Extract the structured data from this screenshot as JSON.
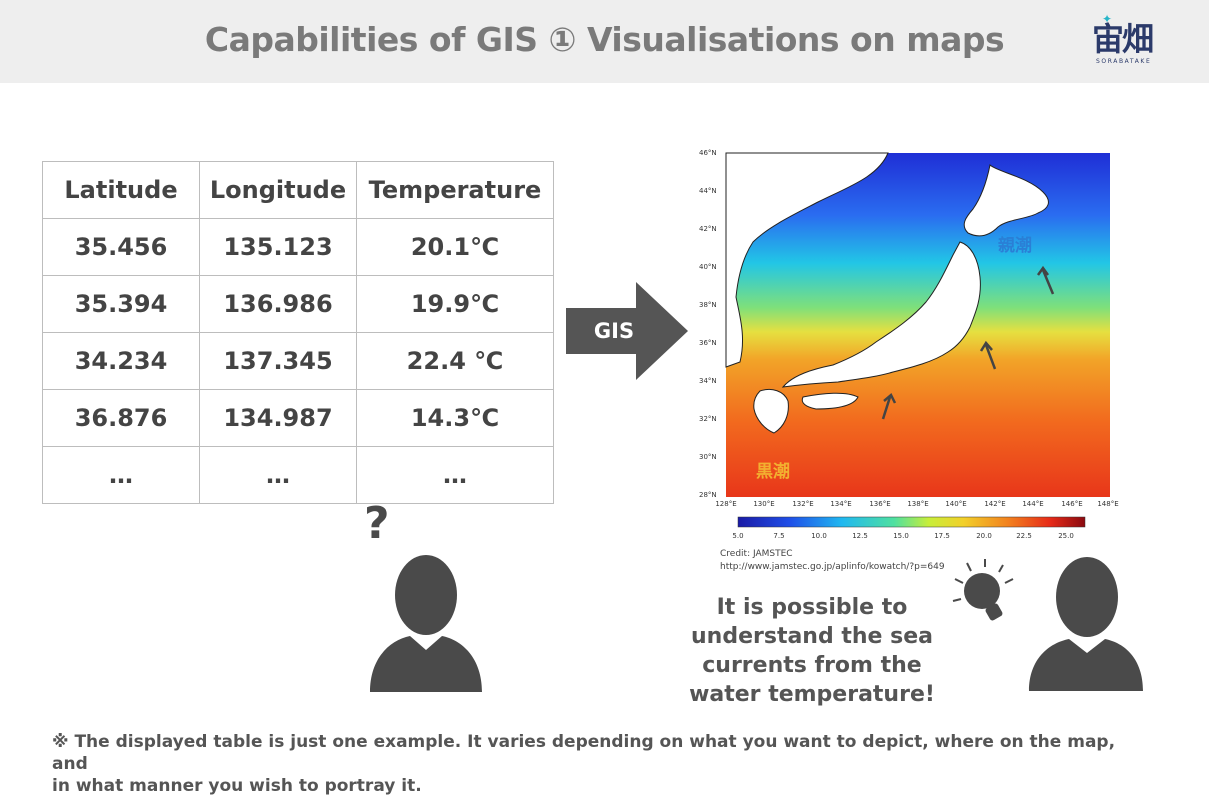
{
  "header": {
    "title": "Capabilities of GIS ① Visualisations on maps"
  },
  "logo": {
    "name": "宙畑",
    "subtitle": "SORABATAKE",
    "color": "#2b3a6a"
  },
  "table": {
    "headers": [
      "Latitude",
      "Longitude",
      "Temperature"
    ],
    "rows": [
      [
        "35.456",
        "135.123",
        "20.1℃"
      ],
      [
        "35.394",
        "136.986",
        "19.9℃"
      ],
      [
        "34.234",
        "137.345",
        "22.4 ℃"
      ],
      [
        "36.876",
        "134.987",
        "14.3℃"
      ],
      [
        "…",
        "…",
        "…"
      ]
    ]
  },
  "arrow": {
    "label": "GIS",
    "color": "#555555"
  },
  "map": {
    "lat_labels": [
      "46°N",
      "44°N",
      "42°N",
      "40°N",
      "38°N",
      "36°N",
      "34°N",
      "32°N",
      "30°N",
      "28°N"
    ],
    "lon_labels": [
      "128°E",
      "130°E",
      "132°E",
      "134°E",
      "136°E",
      "138°E",
      "140°E",
      "142°E",
      "144°E",
      "146°E",
      "148°E"
    ],
    "colorbar_ticks": [
      "5.0",
      "7.5",
      "10.0",
      "12.5",
      "15.0",
      "17.5",
      "20.0",
      "22.5",
      "25.0"
    ],
    "oyashio_label": "親潮",
    "kuroshio_label": "黒潮"
  },
  "credit": {
    "line1": "Credit: JAMSTEC",
    "line2": "http://www.jamstec.go.jp/aplinfo/kowatch/?p=649"
  },
  "person_left": {
    "bubble": "?"
  },
  "person_right": {
    "icon": "lightbulb-icon"
  },
  "caption": {
    "line1": "It is possible to",
    "line2": "understand the sea",
    "line3": "currents from the",
    "line4": "water temperature!"
  },
  "note": {
    "line1": "※ The displayed table is just one example. It varies depending on what you want to depict, where on the map, and",
    "line2": "in what manner you wish to portray it."
  }
}
